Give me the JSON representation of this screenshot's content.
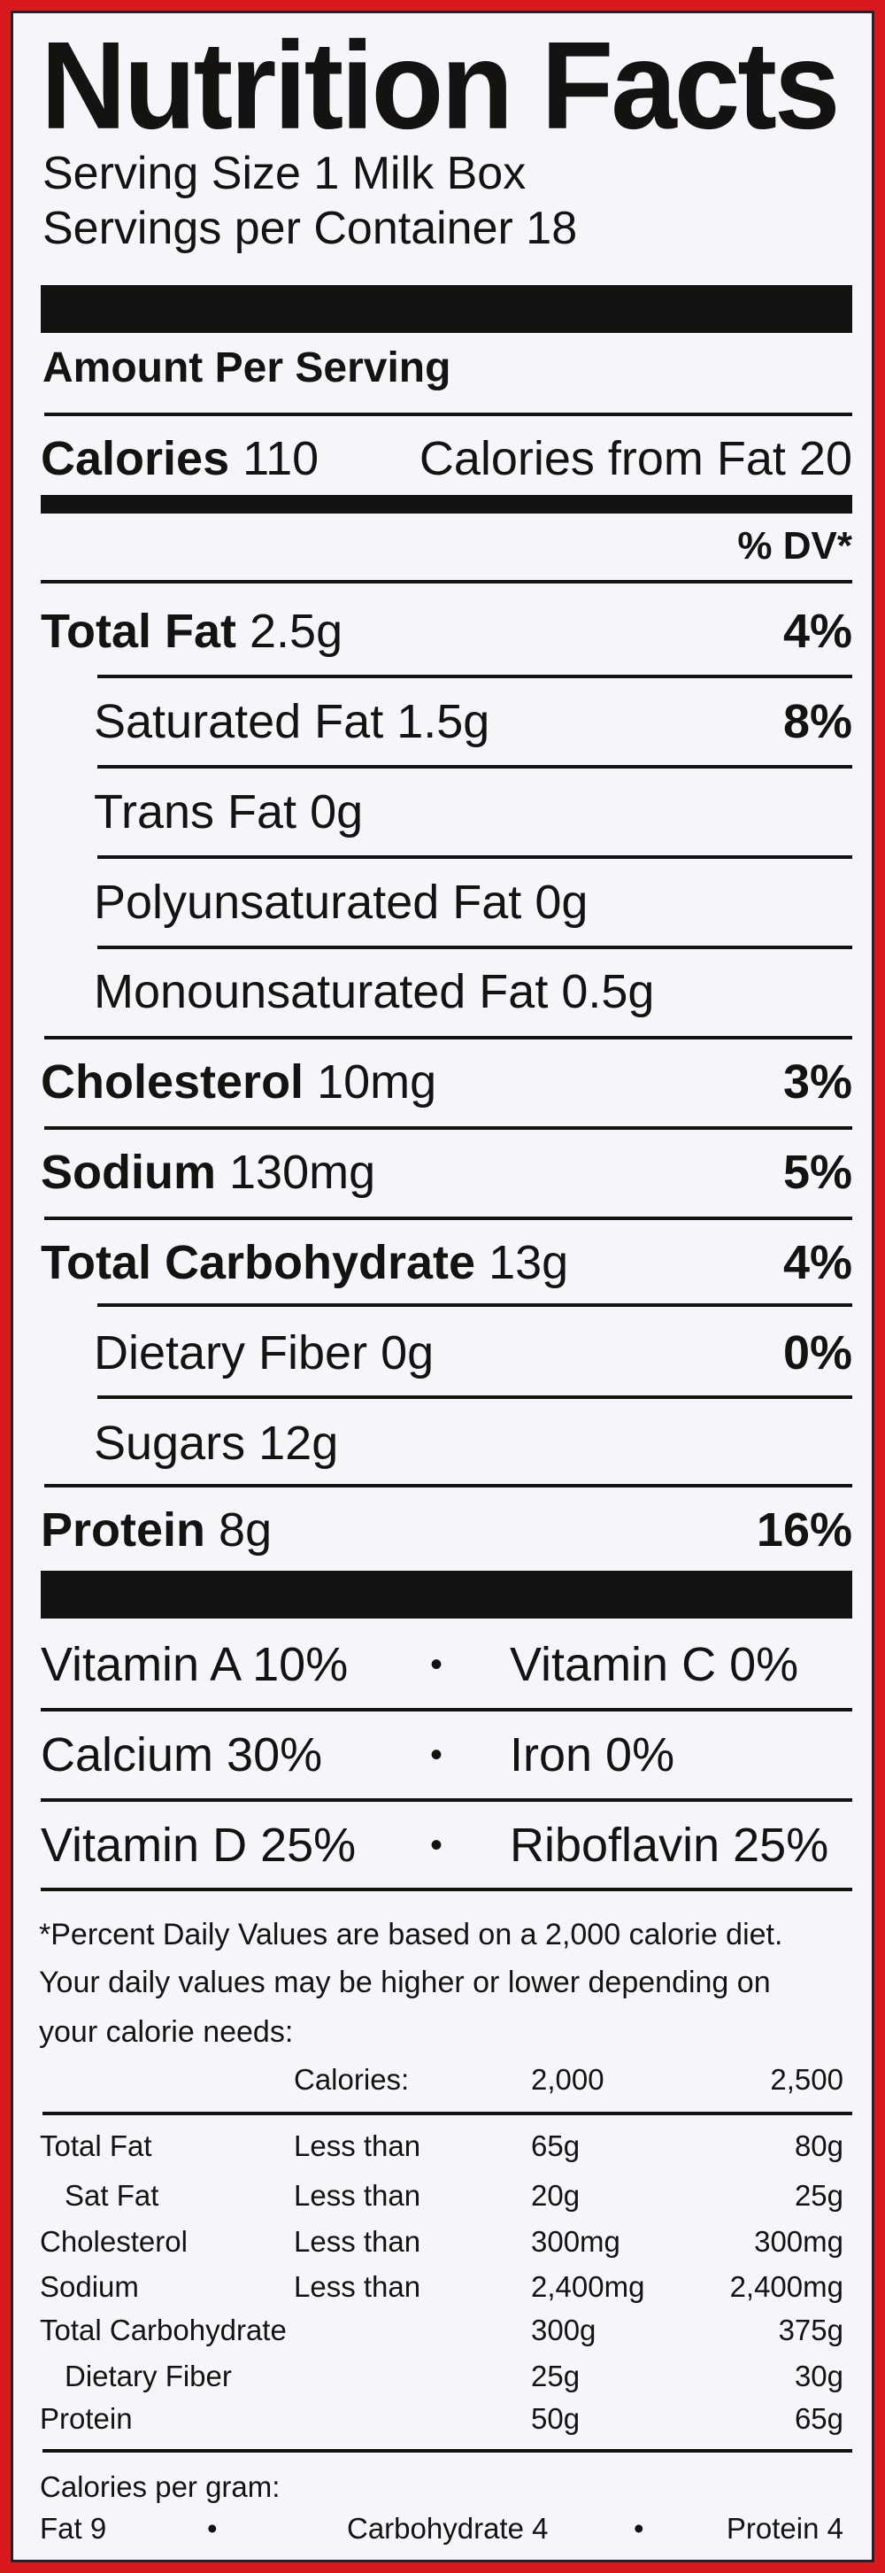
{
  "colors": {
    "border": "#d8191e",
    "background": "#f6f6fa",
    "text": "#151212"
  },
  "title": "Nutrition Facts",
  "serving_size": "Serving Size 1 Milk Box",
  "servings_per_container": "Servings per Container 18",
  "amount_per_serving": "Amount Per Serving",
  "calories": {
    "label": "Calories",
    "value": "110",
    "from_fat": "Calories from Fat 20"
  },
  "dv_header": "% DV*",
  "nutrients": [
    {
      "label": "Total Fat",
      "amount": "2.5g",
      "dv": "4%"
    },
    {
      "label": "Saturated Fat",
      "amount": "1.5g",
      "dv": "8%"
    },
    {
      "label": "Trans Fat",
      "amount": "0g",
      "dv": ""
    },
    {
      "label": "Polyunsaturated Fat",
      "amount": "0g",
      "dv": ""
    },
    {
      "label": "Monounsaturated Fat",
      "amount": "0.5g",
      "dv": ""
    },
    {
      "label": "Cholesterol",
      "amount": "10mg",
      "dv": "3%"
    },
    {
      "label": "Sodium",
      "amount": "130mg",
      "dv": "5%"
    },
    {
      "label": "Total Carbohydrate",
      "amount": "13g",
      "dv": "4%"
    },
    {
      "label": "Dietary Fiber",
      "amount": "0g",
      "dv": "0%"
    },
    {
      "label": "Sugars",
      "amount": "12g",
      "dv": ""
    },
    {
      "label": "Protein",
      "amount": "8g",
      "dv": "16%"
    }
  ],
  "vitamins": [
    {
      "left": "Vitamin A 10%",
      "right": "Vitamin C 0%"
    },
    {
      "left": "Calcium 30%",
      "right": "Iron 0%"
    },
    {
      "left": "Vitamin D 25%",
      "right": "Riboflavin 25%"
    }
  ],
  "bullet": "•",
  "footnote": [
    "*Percent Daily Values are based on a 2,000 calorie diet.",
    "Your daily values may be higher or lower depending on",
    "your calorie needs:"
  ],
  "dv_table": {
    "header": [
      "",
      "Calories:",
      "2,000",
      "2,500"
    ],
    "rows": [
      [
        "Total Fat",
        "Less than",
        "65g",
        "80g"
      ],
      [
        "Sat Fat",
        "Less than",
        "20g",
        "25g"
      ],
      [
        "Cholesterol",
        "Less than",
        "300mg",
        "300mg"
      ],
      [
        "Sodium",
        "Less than",
        "2,400mg",
        "2,400mg"
      ],
      [
        "Total Carbohydrate",
        "",
        "300g",
        "375g"
      ],
      [
        "Dietary Fiber",
        "",
        "25g",
        "30g"
      ],
      [
        "Protein",
        "",
        "50g",
        "65g"
      ]
    ]
  },
  "calories_per_gram": {
    "label": "Calories per gram:",
    "fat": "Fat 9",
    "carbohydrate": "Carbohydrate 4",
    "protein": "Protein 4"
  }
}
